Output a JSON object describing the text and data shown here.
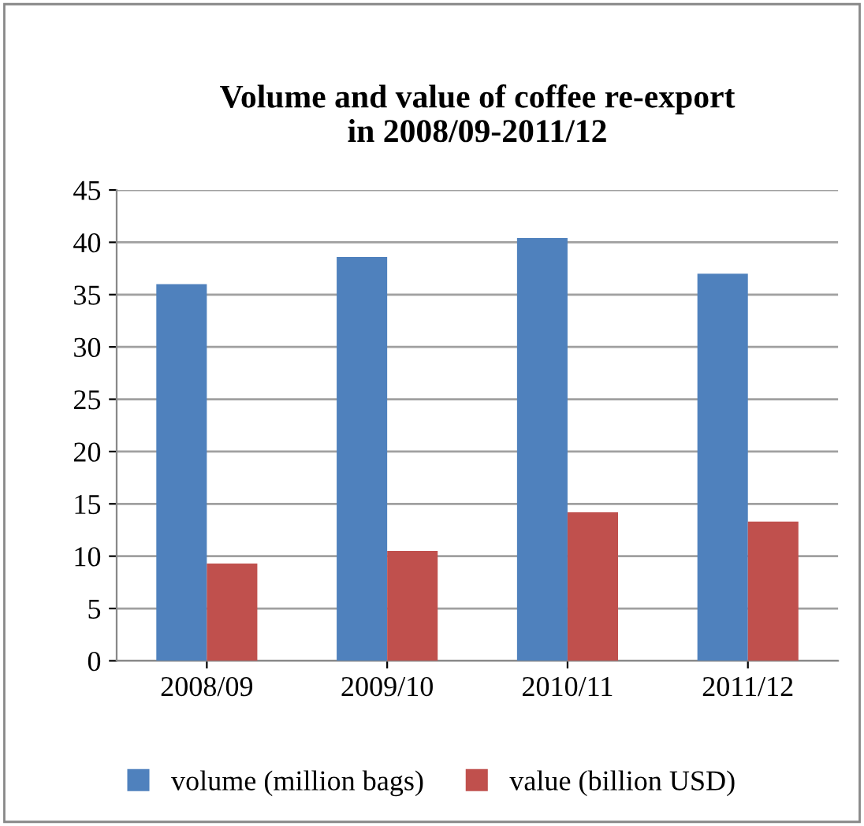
{
  "chart_data": {
    "type": "bar",
    "title": "Volume and value of coffee re-export\nin 2008/09-2011/12",
    "categories": [
      "2008/09",
      "2009/10",
      "2010/11",
      "2011/12"
    ],
    "series": [
      {
        "name": "volume (million bags)",
        "color": "#4f81bd",
        "values": [
          36.0,
          38.6,
          40.4,
          37.0
        ]
      },
      {
        "name": "value (billion USD)",
        "color": "#c0504d",
        "values": [
          9.3,
          10.5,
          14.2,
          13.3
        ]
      }
    ],
    "ylim": [
      0,
      45
    ],
    "yticks": [
      0,
      5,
      10,
      15,
      20,
      25,
      30,
      35,
      40,
      45
    ],
    "grid": "y",
    "legend": "bottom"
  }
}
